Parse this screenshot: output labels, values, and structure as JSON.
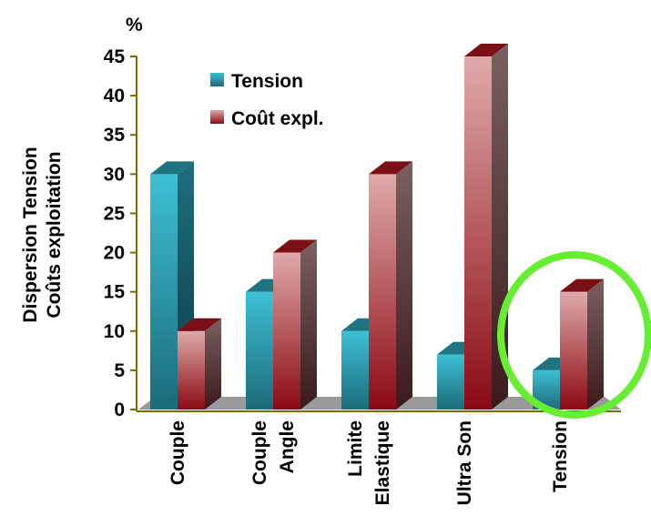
{
  "chart_data": {
    "type": "bar",
    "title": "",
    "unit_label": "%",
    "ylabel_lines": [
      "Dispersion Tension",
      "Coûts exploitation"
    ],
    "xlabel": "",
    "ylim": [
      0,
      45
    ],
    "yticks": [
      0,
      5,
      10,
      15,
      20,
      25,
      30,
      35,
      40,
      45
    ],
    "grid": false,
    "legend_position": "top-left",
    "categories": [
      [
        "Couple"
      ],
      [
        "Couple",
        "Angle"
      ],
      [
        "Limite",
        "Elastique"
      ],
      [
        "Ultra Son"
      ],
      [
        "Tension"
      ]
    ],
    "series": [
      {
        "name": "Tension",
        "values": [
          30,
          15,
          10,
          7,
          5
        ],
        "color": "#3ab4c8"
      },
      {
        "name": "Coût expl.",
        "values": [
          10,
          20,
          30,
          45,
          15
        ],
        "color": "#d89c9c"
      }
    ],
    "highlight": {
      "category_index": 4,
      "shape": "circle",
      "color": "#66ee33"
    }
  }
}
